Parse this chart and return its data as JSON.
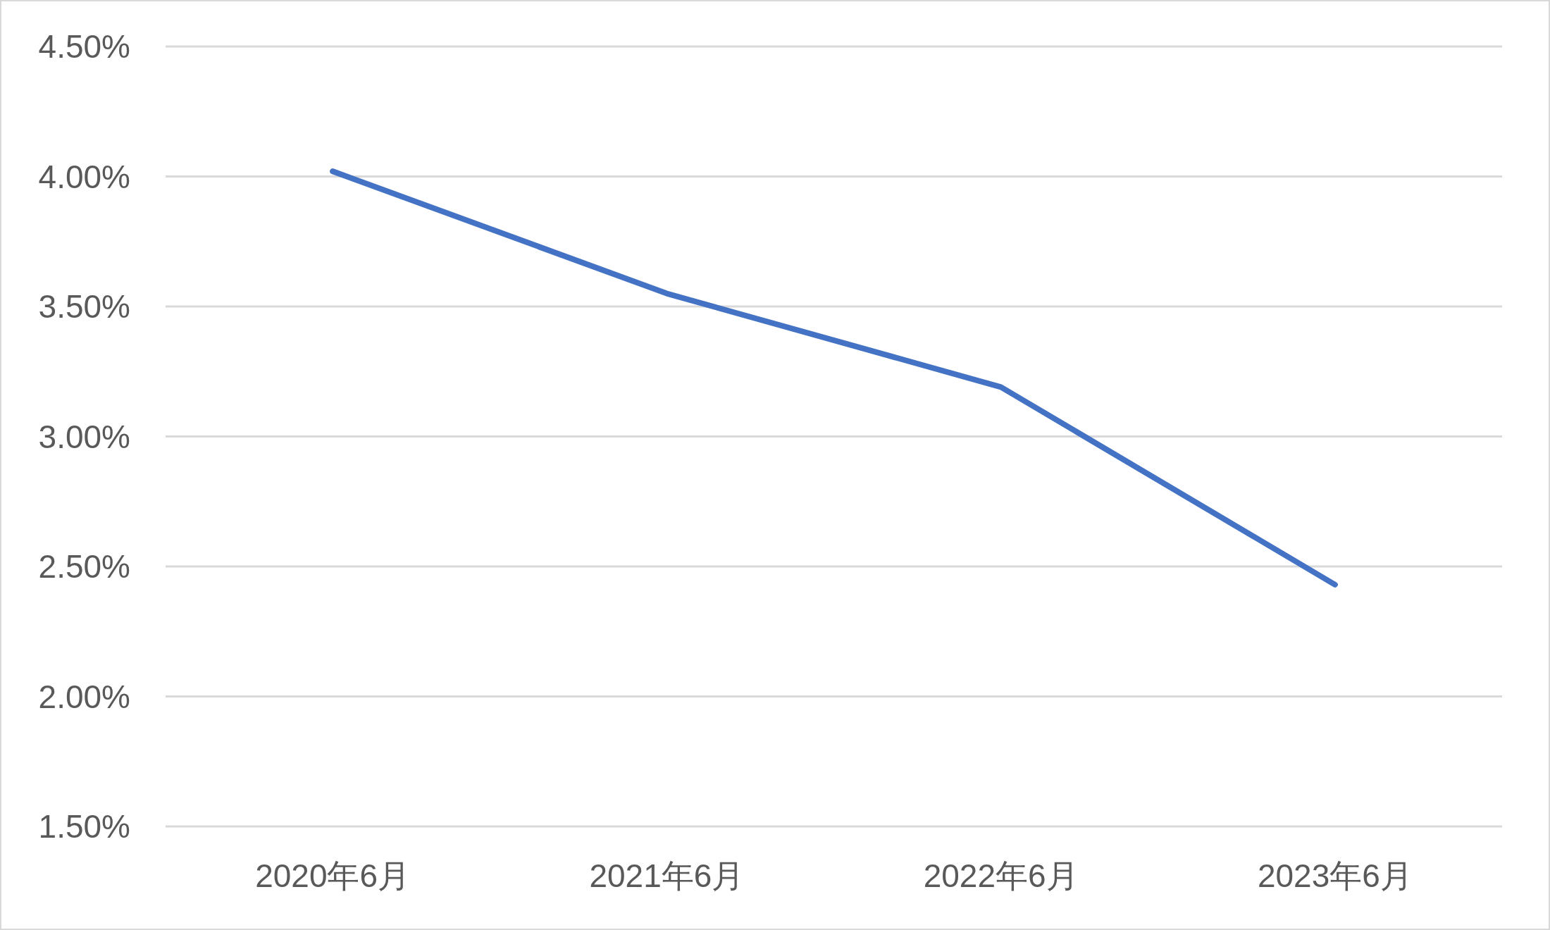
{
  "chart_data": {
    "type": "line",
    "categories": [
      "2020年6月",
      "2021年6月",
      "2022年6月",
      "2023年6月"
    ],
    "series": [
      {
        "color": "#4472c4",
        "values": [
          4.02,
          3.55,
          3.19,
          2.43
        ]
      }
    ],
    "ylim": [
      1.5,
      4.5
    ],
    "yticks": [
      {
        "value": 1.5,
        "label": "1.50%"
      },
      {
        "value": 2.0,
        "label": "2.00%"
      },
      {
        "value": 2.5,
        "label": "2.50%"
      },
      {
        "value": 3.0,
        "label": "3.00%"
      },
      {
        "value": 3.5,
        "label": "3.50%"
      },
      {
        "value": 4.0,
        "label": "4.00%"
      },
      {
        "value": 4.5,
        "label": "4.50%"
      }
    ],
    "grid": "y",
    "marker": "none",
    "line_style": "solid"
  }
}
